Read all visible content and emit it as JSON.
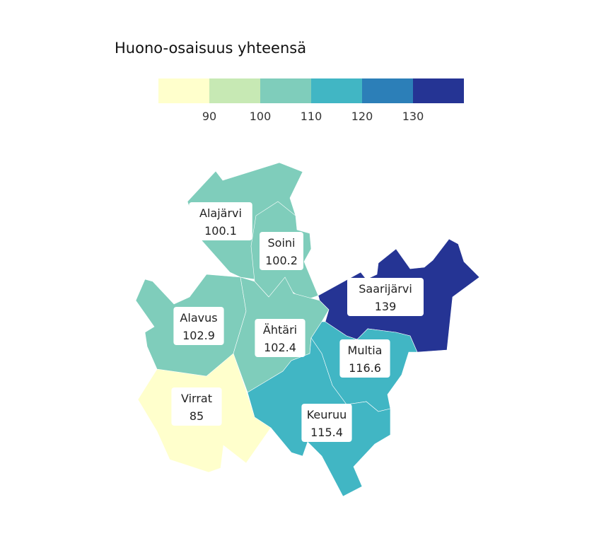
{
  "title": "Huono-osaisuus yhteensä",
  "legend": {
    "colors": [
      "#ffffcc",
      "#c7e9b4",
      "#7fcdbb",
      "#41b6c4",
      "#2c7fb8",
      "#253494"
    ],
    "breaks": [
      "90",
      "100",
      "110",
      "120",
      "130"
    ]
  },
  "regions": [
    {
      "key": "alajarvi",
      "name": "Alajärvi",
      "value": "100.1",
      "color": "#7fcdbb"
    },
    {
      "key": "soini",
      "name": "Soini",
      "value": "100.2",
      "color": "#7fcdbb"
    },
    {
      "key": "saarijarvi",
      "name": "Saarijärvi",
      "value": "139",
      "color": "#253494"
    },
    {
      "key": "alavus",
      "name": "Alavus",
      "value": "102.9",
      "color": "#7fcdbb"
    },
    {
      "key": "ahtari",
      "name": "Ähtäri",
      "value": "102.4",
      "color": "#7fcdbb"
    },
    {
      "key": "multia",
      "name": "Multia",
      "value": "116.6",
      "color": "#41b6c4"
    },
    {
      "key": "virrat",
      "name": "Virrat",
      "value": "85",
      "color": "#ffffcc"
    },
    {
      "key": "keuruu",
      "name": "Keuruu",
      "value": "115.4",
      "color": "#41b6c4"
    }
  ]
}
